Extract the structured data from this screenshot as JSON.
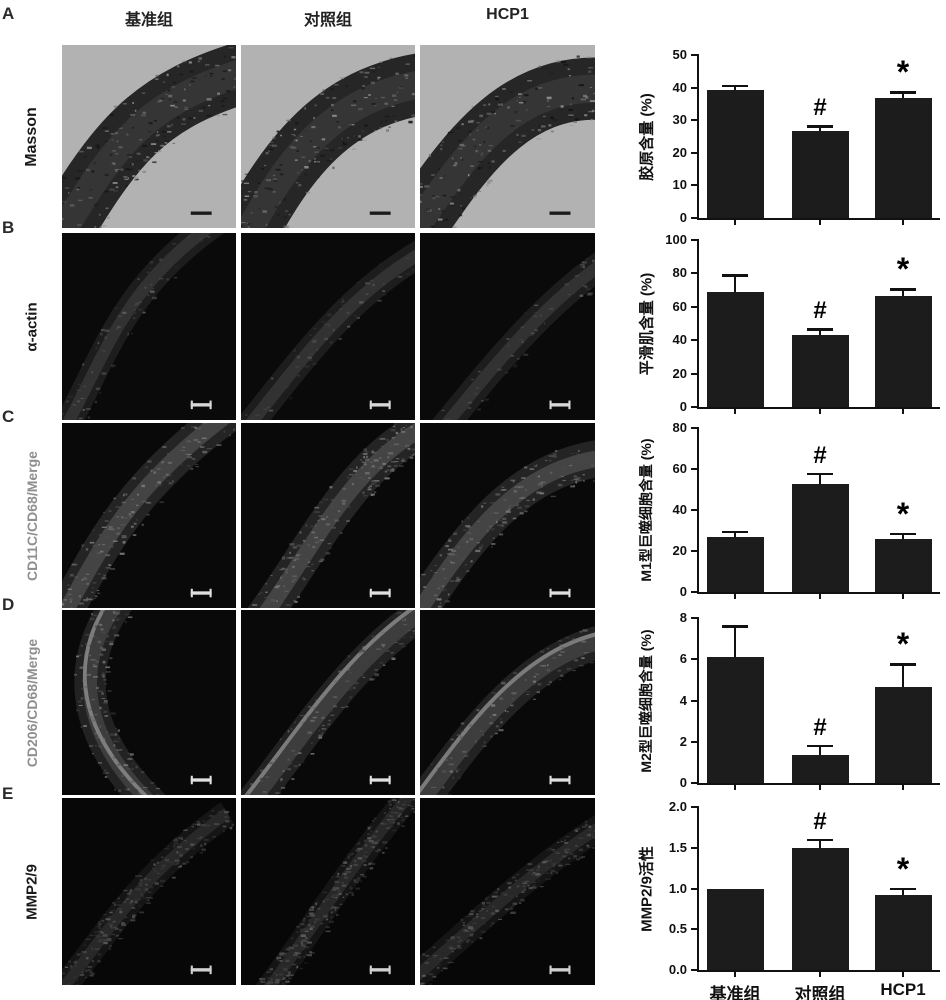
{
  "figure": {
    "panel_letters": [
      "A",
      "B",
      "C",
      "D",
      "E"
    ],
    "column_headers": [
      "基准组",
      "对照组",
      "HCP1"
    ],
    "row_labels": [
      {
        "text": "Masson",
        "color": "#1a1a1a",
        "size": 16
      },
      {
        "text": "α-actin",
        "color": "#1a1a1a",
        "size": 15
      },
      {
        "text": "CD11C/CD68/Merge",
        "color": "#8f8f8f",
        "size": 14
      },
      {
        "text": "CD206/CD68/Merge",
        "color": "#8f8f8f",
        "size": 14
      },
      {
        "text": "MMP2/9",
        "color": "#1a1a1a",
        "size": 15
      }
    ],
    "stain_types": [
      "masson",
      "fluor",
      "fluor",
      "fluor",
      "fluor"
    ]
  },
  "colors": {
    "bar": "#1c1c1c",
    "axis": "#111111"
  },
  "chart_data": [
    {
      "type": "bar",
      "categories": [
        "基准组",
        "对照组",
        "HCP1"
      ],
      "values": [
        39.3,
        26.6,
        36.9
      ],
      "errors": [
        1.2,
        1.6,
        1.7
      ],
      "annotations": [
        "",
        "#",
        "*"
      ],
      "ylabel": "胶原含量 (%)",
      "xlabel": "",
      "ylim": [
        0,
        50
      ],
      "yticks": [
        0,
        10,
        20,
        30,
        40,
        50
      ],
      "ytick_labels": [
        "0",
        "10",
        "20",
        "30",
        "40",
        "50"
      ],
      "legend": "none",
      "grid": false
    },
    {
      "type": "bar",
      "categories": [
        "基准组",
        "对照组",
        "HCP1"
      ],
      "values": [
        69,
        43,
        66.5
      ],
      "errors": [
        10,
        3.5,
        4
      ],
      "annotations": [
        "",
        "#",
        "*"
      ],
      "ylabel": "平滑肌含量 (%)",
      "xlabel": "",
      "ylim": [
        0,
        100
      ],
      "yticks": [
        0,
        20,
        40,
        60,
        80,
        100
      ],
      "ytick_labels": [
        "0",
        "20",
        "40",
        "60",
        "80",
        "100"
      ],
      "legend": "none",
      "grid": false
    },
    {
      "type": "bar",
      "categories": [
        "基准组",
        "对照组",
        "HCP1"
      ],
      "values": [
        26.8,
        52.7,
        25.9
      ],
      "errors": [
        2.5,
        5,
        2.4
      ],
      "annotations": [
        "",
        "#",
        "*"
      ],
      "ylabel": "M1型巨噬细胞含量 (%)",
      "xlabel": "",
      "ylim": [
        0,
        80
      ],
      "yticks": [
        0,
        20,
        40,
        60,
        80
      ],
      "ytick_labels": [
        "0",
        "20",
        "40",
        "60",
        "80"
      ],
      "legend": "none",
      "grid": false
    },
    {
      "type": "bar",
      "categories": [
        "基准组",
        "对照组",
        "HCP1"
      ],
      "values": [
        6.1,
        1.35,
        4.65
      ],
      "errors": [
        1.5,
        0.45,
        1.1
      ],
      "annotations": [
        "",
        "#",
        "*"
      ],
      "ylabel": "M2型巨噬细胞含量 (%)",
      "xlabel": "",
      "ylim": [
        0,
        8
      ],
      "yticks": [
        0,
        2,
        4,
        6,
        8
      ],
      "ytick_labels": [
        "0",
        "2",
        "4",
        "6",
        "8"
      ],
      "legend": "none",
      "grid": false
    },
    {
      "type": "bar",
      "categories": [
        "基准组",
        "对照组",
        "HCP1"
      ],
      "values": [
        1.0,
        1.5,
        0.92
      ],
      "errors": [
        0,
        0.1,
        0.08
      ],
      "annotations": [
        "",
        "#",
        "*"
      ],
      "ylabel": "MMP2/9活性",
      "xlabel": "",
      "ylim": [
        0,
        2
      ],
      "yticks": [
        0,
        0.5,
        1.0,
        1.5,
        2.0
      ],
      "ytick_labels": [
        "0.0",
        "0.5",
        "1.0",
        "1.5",
        "2.0"
      ],
      "legend": "none",
      "grid": false,
      "show_x_labels": true
    }
  ]
}
